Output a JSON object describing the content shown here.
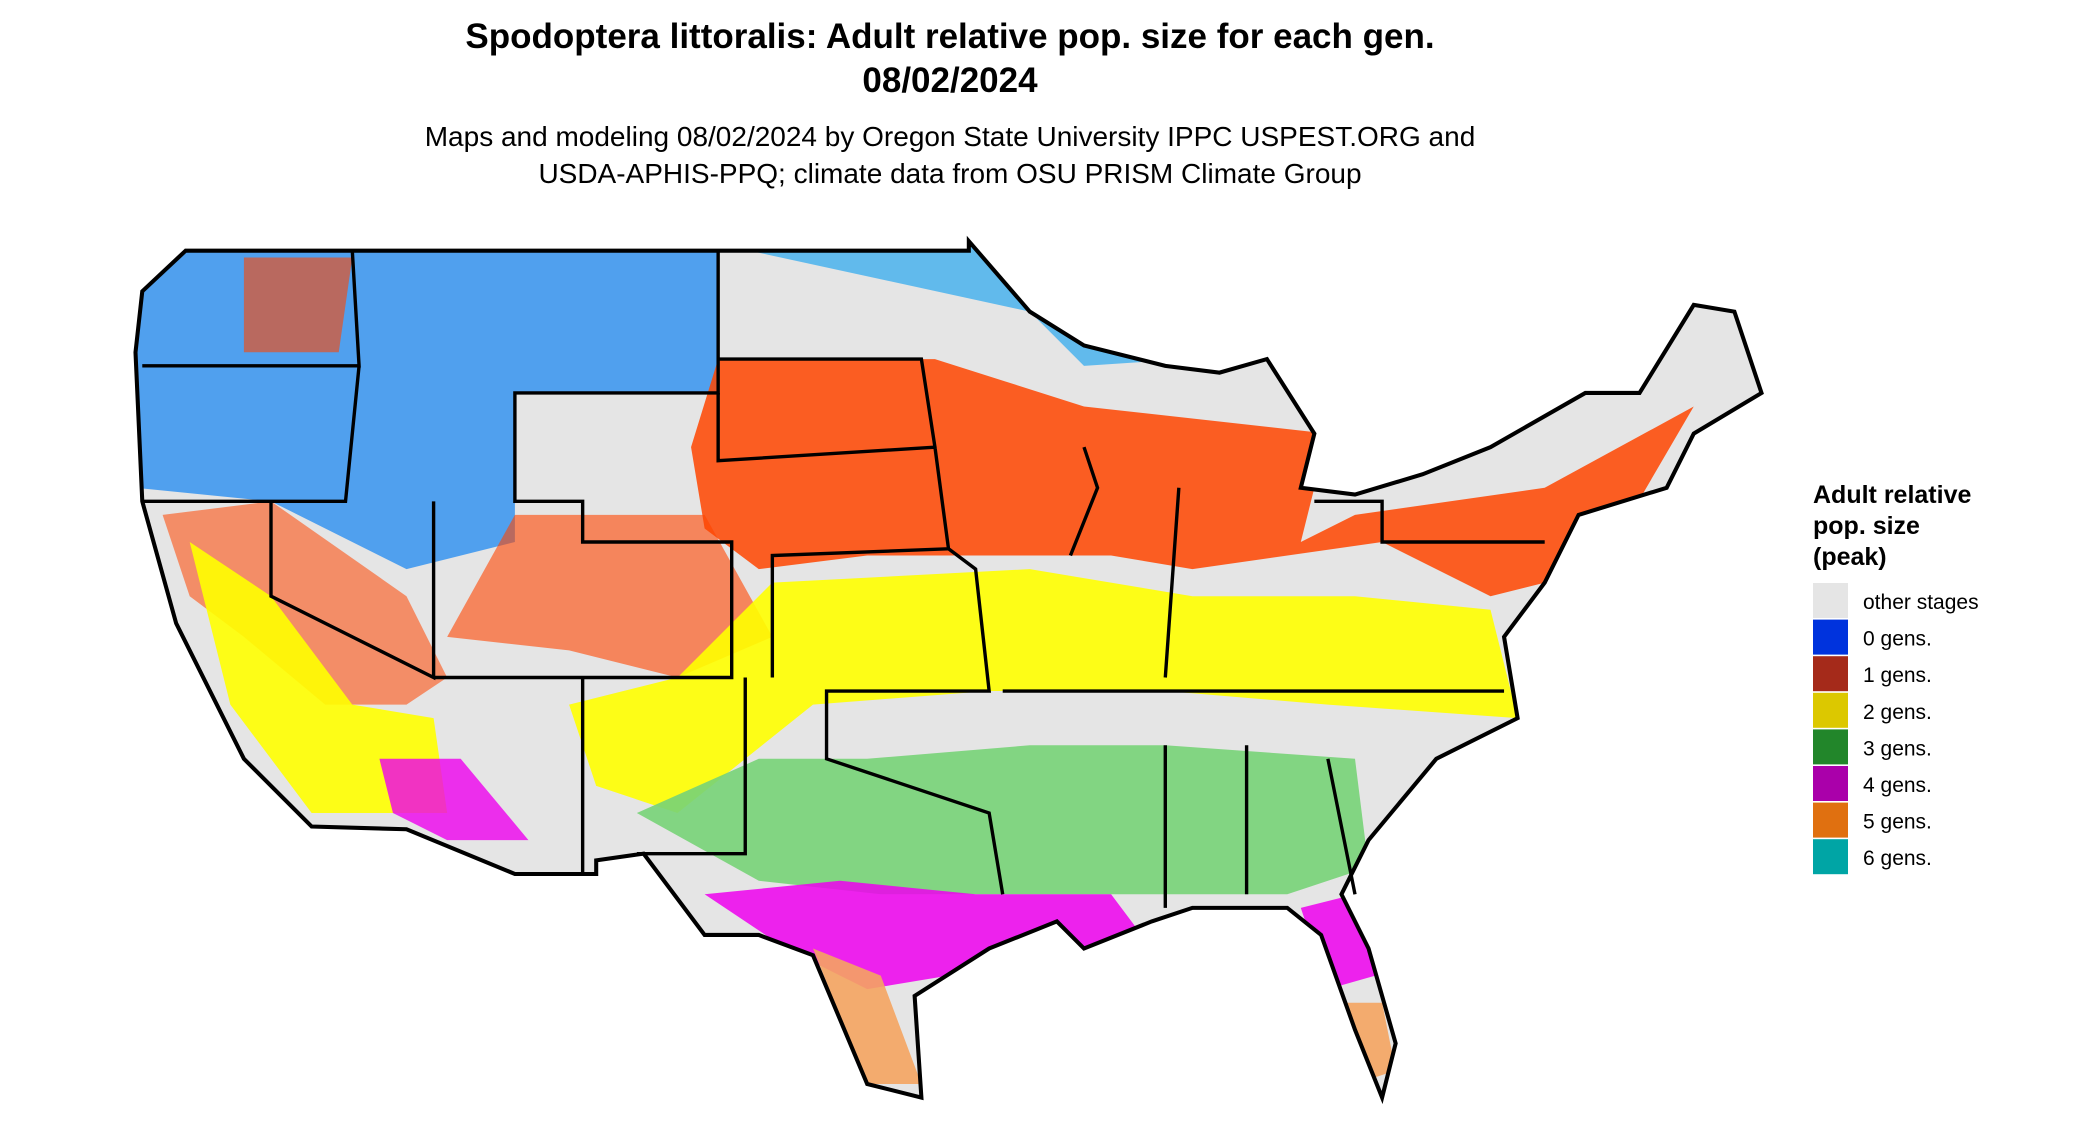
{
  "title": "Spodoptera littoralis: Adult relative pop. size for each gen.",
  "date": "08/02/2024",
  "subtitle": [
    "Maps and modeling 08/02/2024 by Oregon State University IPPC USPEST.ORG and",
    "USDA-APHIS-PPQ; climate data from OSU PRISM Climate Group"
  ],
  "legend": {
    "title": [
      "Adult relative",
      "pop. size",
      "(peak)"
    ],
    "items": [
      {
        "label": "other stages",
        "color": "#e5e5e5"
      },
      {
        "label": "0 gens.",
        "color": "#0033dd"
      },
      {
        "label": "1 gens.",
        "color": "#a52a1a"
      },
      {
        "label": "2 gens.",
        "color": "#dcc800"
      },
      {
        "label": "3 gens.",
        "color": "#22862a"
      },
      {
        "label": "4 gens.",
        "color": "#aa00aa"
      },
      {
        "label": "5 gens.",
        "color": "#e07010"
      },
      {
        "label": "6 gens.",
        "color": "#00a5a5"
      }
    ]
  }
}
